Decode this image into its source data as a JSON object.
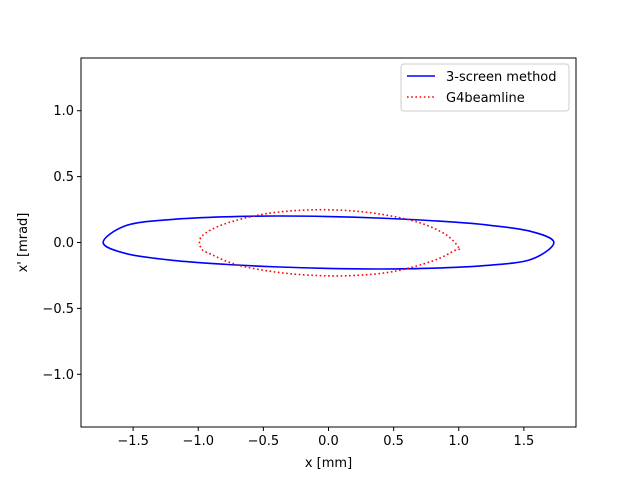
{
  "chart_data": {
    "type": "line",
    "title": "",
    "xlabel": "x [mm]",
    "ylabel": "x' [mrad]",
    "xlim": [
      -1.9,
      1.9
    ],
    "ylim": [
      -1.4,
      1.4
    ],
    "xticks": [
      -1.5,
      -1.0,
      -0.5,
      0.0,
      0.5,
      1.0,
      1.5
    ],
    "xtick_labels": [
      "−1.5",
      "−1.0",
      "−0.5",
      "0.0",
      "0.5",
      "1.0",
      "1.5"
    ],
    "yticks": [
      -1.0,
      -0.5,
      0.0,
      0.5,
      1.0
    ],
    "ytick_labels": [
      "−1.0",
      "−0.5",
      "0.0",
      "0.5",
      "1.0"
    ],
    "grid": false,
    "legend": "top-right",
    "series": [
      {
        "name": "3-screen method",
        "color": "#0000ff",
        "style": "solid",
        "x": [
          1.73,
          1.55,
          1.2,
          0.8,
          0.4,
          0.0,
          -0.4,
          -0.8,
          -1.2,
          -1.55,
          -1.73,
          -1.55,
          -1.2,
          -0.8,
          -0.4,
          0.0,
          0.4,
          0.8,
          1.2,
          1.55,
          1.73
        ],
        "y": [
          0.0,
          0.085,
          0.135,
          0.165,
          0.185,
          0.197,
          0.201,
          0.195,
          0.175,
          0.13,
          0.0,
          -0.085,
          -0.135,
          -0.165,
          -0.185,
          -0.197,
          -0.201,
          -0.195,
          -0.175,
          -0.13,
          0.0
        ]
      },
      {
        "name": "G4beamline",
        "color": "#ff0000",
        "style": "dotted",
        "x": [
          1.0,
          0.9,
          0.7,
          0.4,
          0.1,
          -0.2,
          -0.5,
          -0.8,
          -0.97,
          -0.98,
          -0.9,
          -0.7,
          -0.4,
          -0.1,
          0.2,
          0.5,
          0.8,
          0.97,
          1.0
        ],
        "y": [
          -0.04,
          0.06,
          0.15,
          0.215,
          0.245,
          0.245,
          0.215,
          0.14,
          0.05,
          -0.04,
          -0.09,
          -0.17,
          -0.225,
          -0.25,
          -0.25,
          -0.22,
          -0.14,
          -0.06,
          -0.04
        ]
      }
    ]
  }
}
